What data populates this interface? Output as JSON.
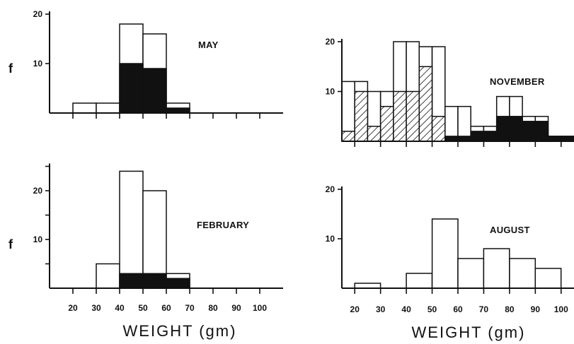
{
  "figure": {
    "y_symbol": "f",
    "x_axis_title": "WEIGHT (gm)"
  },
  "chart_data": [
    {
      "type": "bar",
      "title": "MAY",
      "xlabel": "WEIGHT (gm)",
      "ylabel": "f",
      "xlim": [
        10,
        110
      ],
      "ylim": [
        0,
        20
      ],
      "y_ticks": [
        10,
        20
      ],
      "y_tick_labels": [
        "10",
        "20"
      ],
      "x_ticks": [
        20,
        30,
        40,
        50,
        60,
        70,
        80,
        90,
        100
      ],
      "x_tick_labels": [],
      "bins": [
        [
          20,
          30
        ],
        [
          30,
          40
        ],
        [
          40,
          50
        ],
        [
          50,
          60
        ],
        [
          60,
          70
        ]
      ],
      "series": [
        {
          "values": [
            2,
            2,
            18,
            16,
            2
          ],
          "fill": "open"
        },
        {
          "values": [
            0,
            0,
            10,
            9,
            1
          ],
          "fill": "solid"
        }
      ]
    },
    {
      "type": "bar",
      "title": "NOVEMBER",
      "xlabel": "WEIGHT (gm)",
      "ylabel": "",
      "xlim": [
        15,
        105
      ],
      "ylim": [
        0,
        20
      ],
      "y_ticks": [
        10,
        20
      ],
      "y_tick_labels": [
        "10",
        "20"
      ],
      "x_ticks": [
        20,
        30,
        40,
        50,
        60,
        70,
        80,
        90,
        100
      ],
      "x_tick_labels": [],
      "bins": [
        [
          15,
          20
        ],
        [
          20,
          25
        ],
        [
          25,
          30
        ],
        [
          30,
          35
        ],
        [
          35,
          40
        ],
        [
          40,
          45
        ],
        [
          45,
          50
        ],
        [
          50,
          55
        ],
        [
          55,
          60
        ],
        [
          60,
          65
        ],
        [
          65,
          70
        ],
        [
          70,
          75
        ],
        [
          75,
          80
        ],
        [
          80,
          85
        ],
        [
          85,
          90
        ],
        [
          90,
          95
        ],
        [
          95,
          100
        ],
        [
          100,
          105
        ]
      ],
      "series": [
        {
          "values": [
            12,
            12,
            10,
            10,
            20,
            20,
            19,
            19,
            7,
            7,
            3,
            3,
            9,
            9,
            5,
            5,
            1,
            1
          ],
          "fill": "open"
        },
        {
          "values": [
            2,
            10,
            3,
            7,
            10,
            10,
            15,
            5,
            0,
            0,
            0,
            0,
            0,
            0,
            0,
            0,
            0,
            0
          ],
          "fill": "hatched"
        },
        {
          "values": [
            0,
            0,
            0,
            0,
            0,
            0,
            0,
            0,
            1,
            1,
            2,
            2,
            5,
            5,
            4,
            4,
            1,
            1
          ],
          "fill": "solid"
        }
      ]
    },
    {
      "type": "bar",
      "title": "FEBRUARY",
      "xlabel": "WEIGHT (gm)",
      "ylabel": "f",
      "xlim": [
        10,
        110
      ],
      "ylim": [
        0,
        25
      ],
      "y_ticks": [
        5,
        10,
        15,
        20,
        25
      ],
      "y_tick_labels": [
        "",
        "10",
        "",
        "20",
        ""
      ],
      "x_ticks": [
        20,
        30,
        40,
        50,
        60,
        70,
        80,
        90,
        100
      ],
      "x_tick_labels": [
        "20",
        "30",
        "40",
        "50",
        "60",
        "70",
        "80",
        "90",
        "100"
      ],
      "bins": [
        [
          30,
          40
        ],
        [
          40,
          50
        ],
        [
          50,
          60
        ],
        [
          60,
          70
        ]
      ],
      "series": [
        {
          "values": [
            5,
            24,
            20,
            3
          ],
          "fill": "open"
        },
        {
          "values": [
            0,
            3,
            3,
            2
          ],
          "fill": "solid"
        }
      ]
    },
    {
      "type": "bar",
      "title": "AUGUST",
      "xlabel": "WEIGHT (gm)",
      "ylabel": "",
      "xlim": [
        15,
        105
      ],
      "ylim": [
        0,
        20
      ],
      "y_ticks": [
        10,
        20
      ],
      "y_tick_labels": [
        "10",
        "20"
      ],
      "x_ticks": [
        20,
        30,
        40,
        50,
        60,
        70,
        80,
        90,
        100
      ],
      "x_tick_labels": [
        "20",
        "30",
        "40",
        "50",
        "60",
        "70",
        "80",
        "90",
        "100"
      ],
      "bins": [
        [
          20,
          30
        ],
        [
          30,
          40
        ],
        [
          40,
          50
        ],
        [
          50,
          60
        ],
        [
          60,
          70
        ],
        [
          70,
          80
        ],
        [
          80,
          90
        ],
        [
          90,
          100
        ],
        [
          100,
          105
        ]
      ],
      "series": [
        {
          "values": [
            1,
            0,
            3,
            14,
            6,
            8,
            6,
            4,
            0
          ],
          "fill": "open"
        }
      ]
    }
  ]
}
